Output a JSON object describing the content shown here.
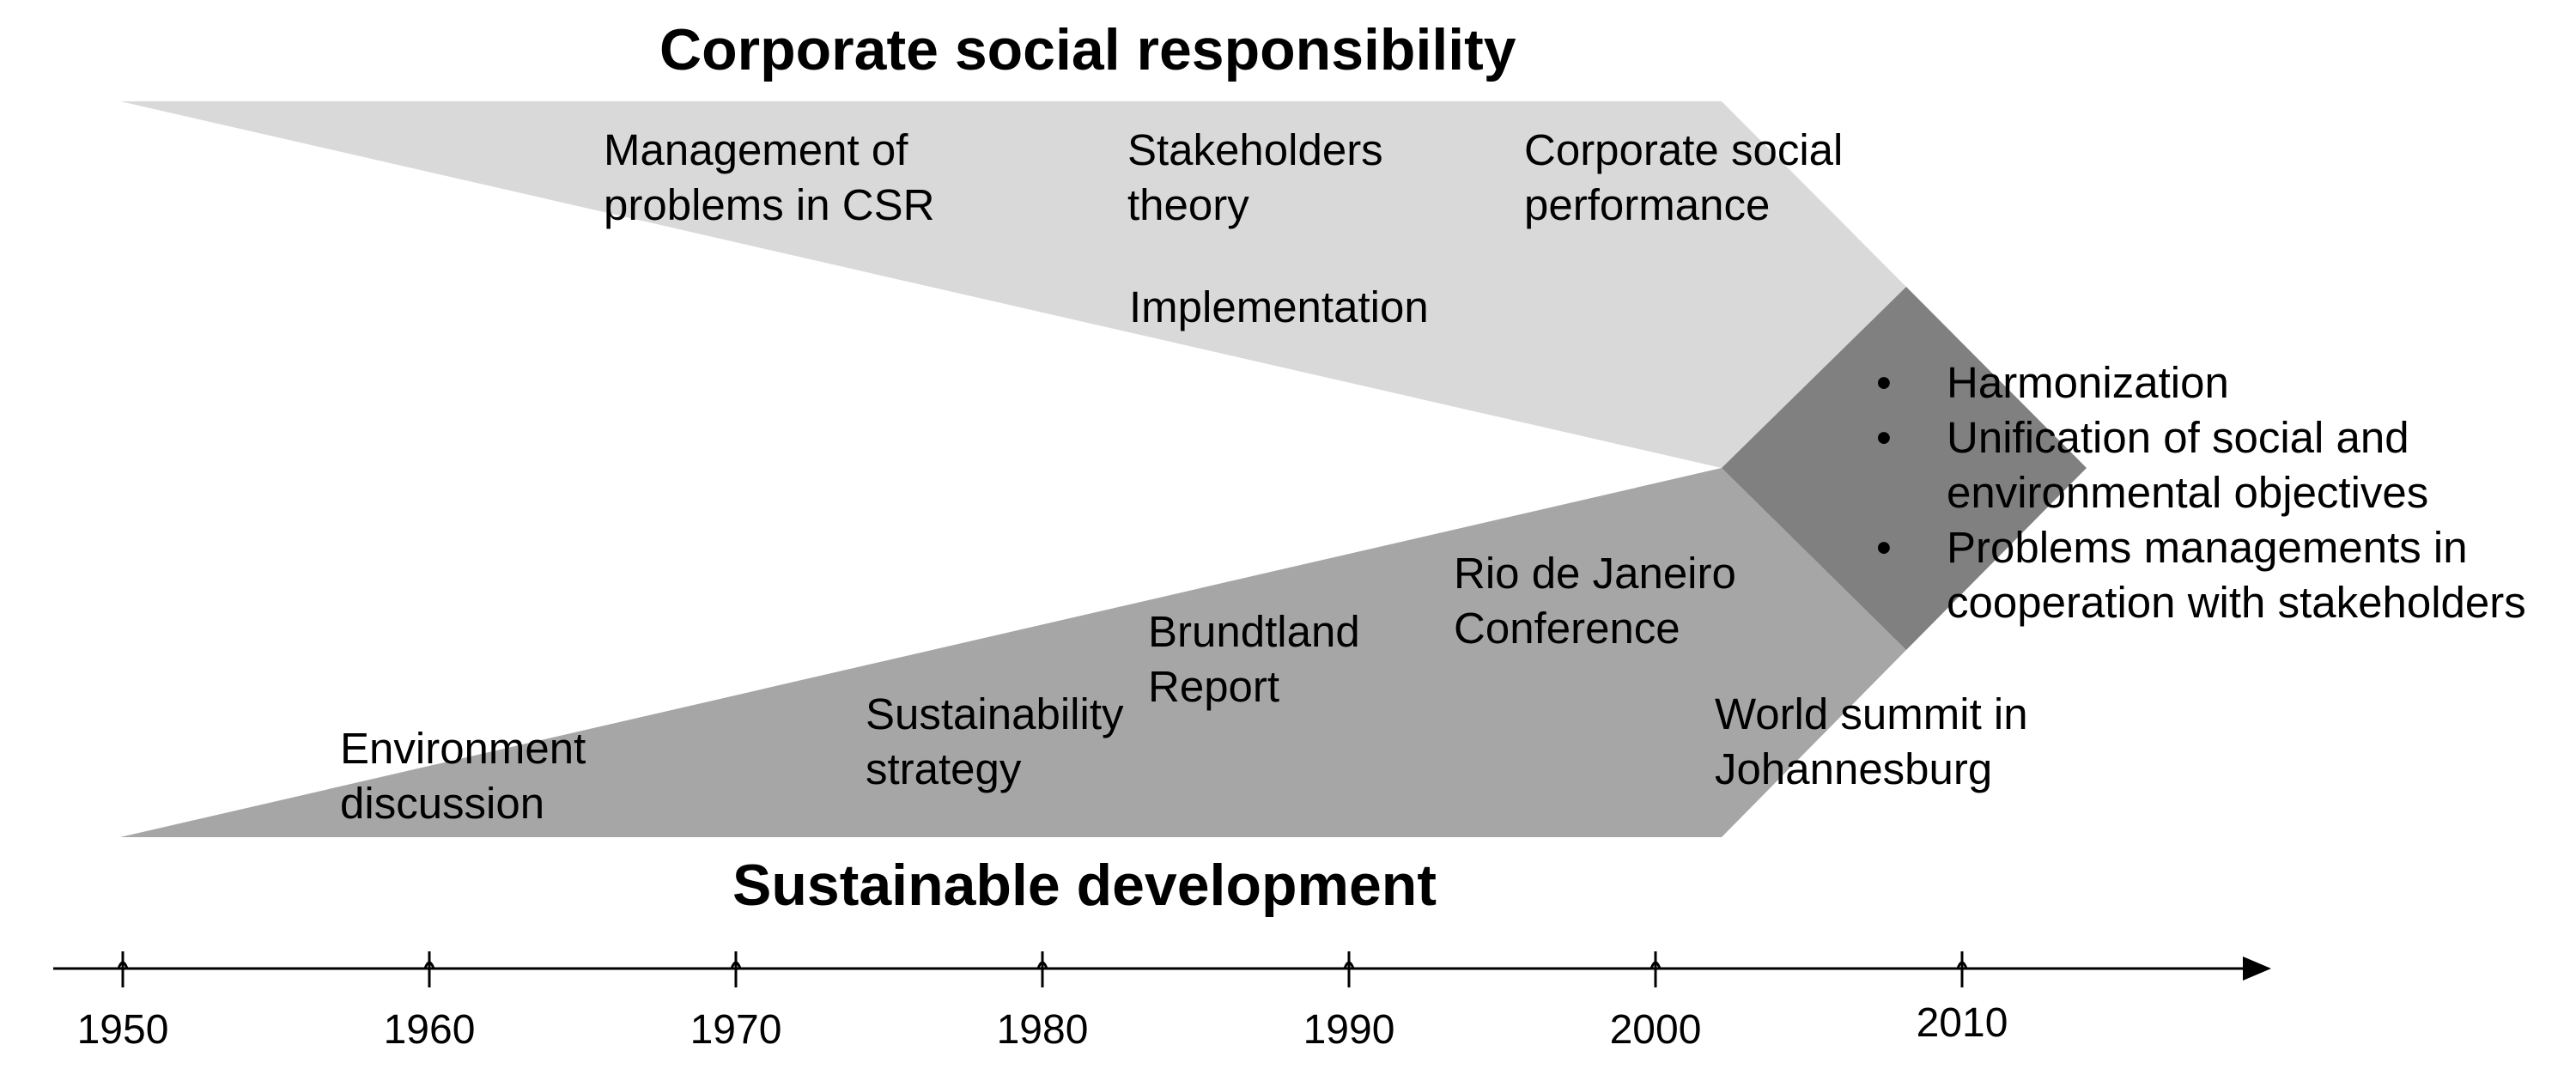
{
  "diagram": {
    "top_title": "Corporate social responsibility",
    "bottom_title": "Sustainable development",
    "csr_labels": {
      "management": [
        "Management of",
        "problems in CSR"
      ],
      "stakeholders": [
        "Stakeholders",
        "theory"
      ],
      "performance": [
        "Corporate social",
        "performance"
      ],
      "implementation": "Implementation"
    },
    "sd_labels": {
      "environment": [
        "Environment",
        "discussion"
      ],
      "sustainability": [
        "Sustainability",
        "strategy"
      ],
      "brundtland": [
        "Brundtland",
        "Report"
      ],
      "rio": [
        "Rio de Janeiro",
        "Conference"
      ],
      "johannesburg": [
        "World summit in",
        "Johannesburg"
      ]
    },
    "convergence_points": [
      "Harmonization",
      [
        "Unification of social and",
        "environmental objectives"
      ],
      [
        "Problems managements in",
        "cooperation with stakeholders"
      ]
    ],
    "timeline": [
      "1950",
      "1960",
      "1970",
      "1980",
      "1990",
      "2000",
      "2010"
    ]
  },
  "colors": {
    "csr_band": "#d9d9d9",
    "sd_band": "#a6a6a6",
    "merge": "#808080",
    "axis": "#000000"
  }
}
